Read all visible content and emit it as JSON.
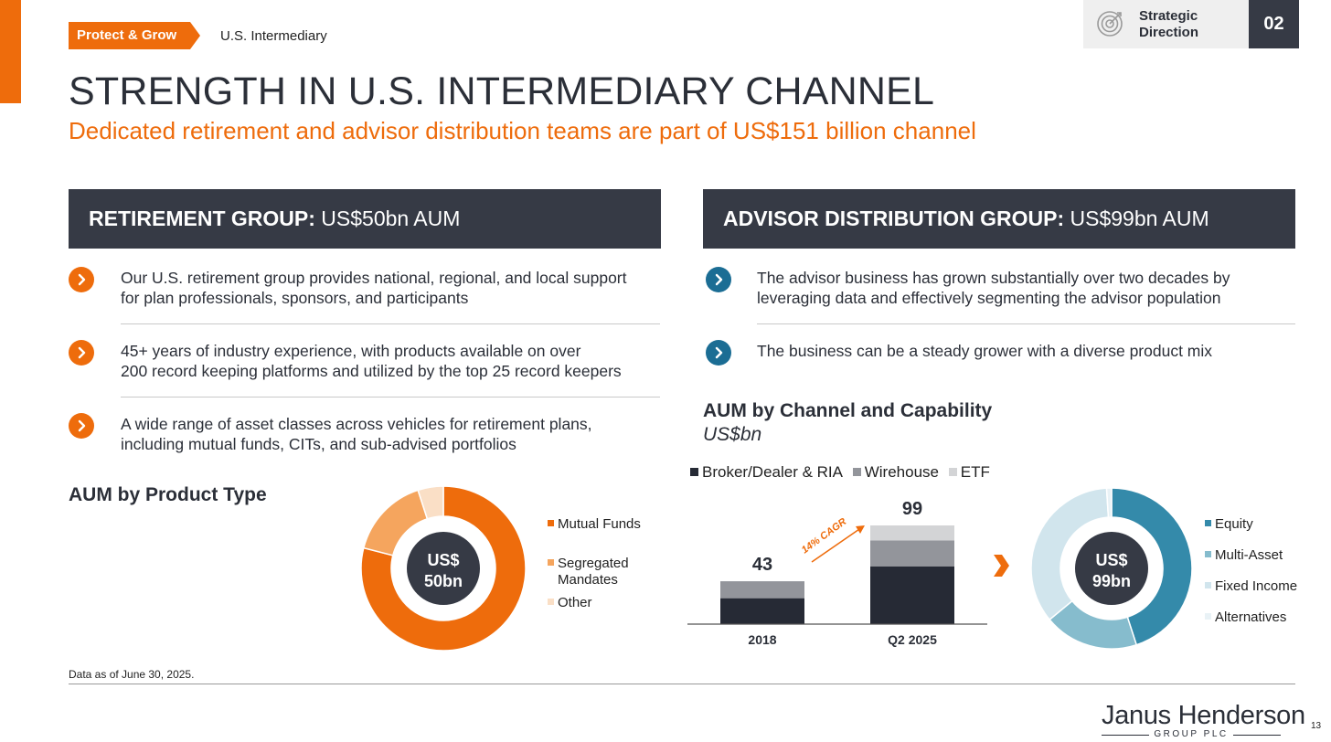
{
  "header": {
    "tag": "Protect & Grow",
    "breadcrumb": "U.S. Intermediary",
    "strategic_line1": "Strategic",
    "strategic_line2": "Direction",
    "section_number": "02"
  },
  "title": "STRENGTH IN U.S. INTERMEDIARY CHANNEL",
  "subtitle": "Dedicated retirement and advisor distribution teams are part of US$151 billion channel",
  "retirement": {
    "header_bold": "RETIREMENT GROUP:",
    "header_value": " US$50bn AUM",
    "bullets": [
      {
        "line1": "Our U.S. retirement group provides national, regional, and local support",
        "line2": "for plan professionals, sponsors, and participants"
      },
      {
        "line1": "45+ years of industry experience, with products available on over",
        "line2": "200 record keeping platforms and utilized by the top 25 record keepers"
      },
      {
        "line1": "A wide range of asset classes across vehicles for retirement plans,",
        "line2": "including mutual funds, CITs, and sub-advised portfolios"
      }
    ],
    "chart_title": "AUM by Product Type"
  },
  "advisor": {
    "header_bold": "ADVISOR DISTRIBUTION GROUP:",
    "header_value": " US$99bn AUM",
    "bullets": [
      {
        "line1": "The advisor business has grown substantially over two decades by",
        "line2": "leveraging data and effectively segmenting the advisor population"
      },
      {
        "line1": "The business can be a steady grower with a diverse product mix",
        "line2": ""
      }
    ],
    "chart_title": "AUM by Channel and Capability",
    "chart_unit": "US$bn"
  },
  "chart_data": [
    {
      "type": "pie",
      "title": "AUM by Product Type",
      "center_line1": "US$",
      "center_line2": "50bn",
      "labels": [
        "Mutual Funds",
        "Segregated Mandates",
        "Other"
      ],
      "legend_lines": [
        [
          "Mutual Funds"
        ],
        [
          "Segregated",
          "Mandates"
        ],
        [
          "Other"
        ]
      ],
      "values": [
        79,
        16,
        5
      ],
      "colors": [
        "#ee6c0c",
        "#f5a55e",
        "#fadfc6"
      ]
    },
    {
      "type": "bar",
      "stacked": true,
      "title": "AUM by Channel and Capability",
      "unit": "US$bn",
      "categories": [
        "2018",
        "Q2 2025"
      ],
      "totals": [
        43,
        99
      ],
      "totals_labels": [
        "43",
        "99"
      ],
      "series": [
        {
          "name": "Broker/Dealer & RIA",
          "values": [
            26,
            58
          ],
          "color": "#262a35"
        },
        {
          "name": "Wirehouse",
          "values": [
            17,
            26
          ],
          "color": "#93959b"
        },
        {
          "name": "ETF",
          "values": [
            0,
            15
          ],
          "color": "#d3d4d6"
        }
      ],
      "ylim": [
        0,
        110
      ],
      "annotation": "14% CAGR"
    },
    {
      "type": "pie",
      "title": "AUM by Capability",
      "center_line1": "US$",
      "center_line2": "99bn",
      "labels": [
        "Equity",
        "Multi-Asset",
        "Fixed Income",
        "Alternatives"
      ],
      "legend_lines": [
        [
          "Equity"
        ],
        [
          "Multi-Asset"
        ],
        [
          "Fixed Income"
        ],
        [
          "Alternatives"
        ]
      ],
      "values": [
        45,
        19,
        35,
        1
      ],
      "colors": [
        "#348aaa",
        "#86bccd",
        "#d1e5ed",
        "#e9f2f6"
      ]
    }
  ],
  "footnote": "Data as of June 30, 2025.",
  "logo": {
    "main": "Janus Henderson",
    "sub": "GROUP PLC"
  },
  "page_number": "13"
}
